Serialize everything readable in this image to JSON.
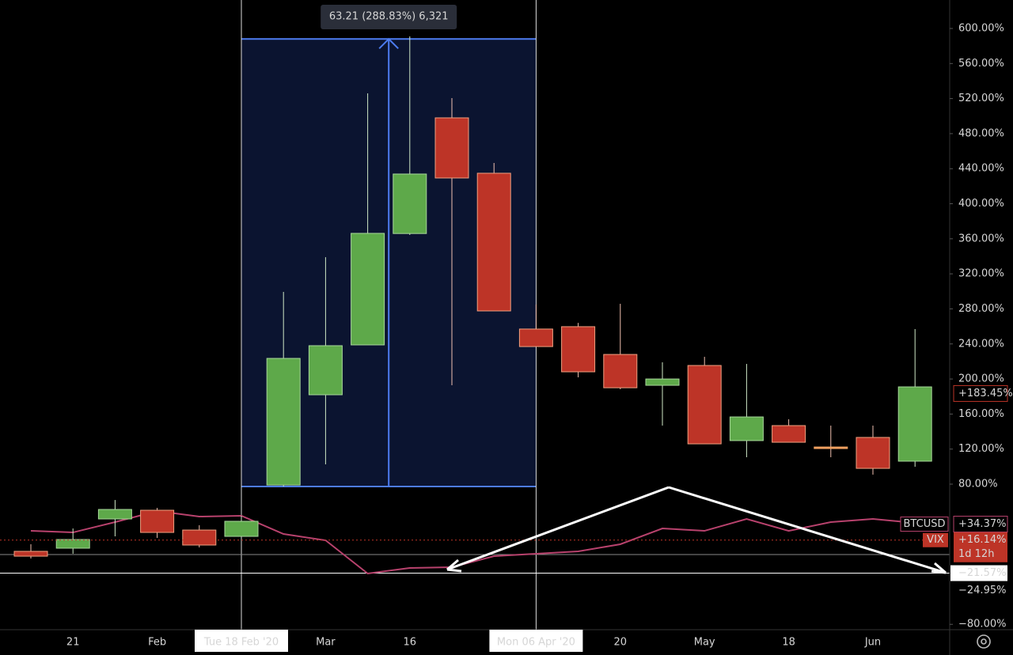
{
  "chart_data": {
    "type": "candlestick",
    "categories": [
      null,
      "21",
      null,
      "Feb",
      null,
      "Tue 18 Feb '20",
      null,
      "Mar",
      null,
      "16",
      null,
      null,
      "Mon 06 Apr '20",
      null,
      "20",
      null,
      "May",
      null,
      "18",
      null,
      "Jun",
      null
    ],
    "series": [
      {
        "name": "VIX",
        "type": "candlestick",
        "up_color": "#5ea94a",
        "down_color": "#bd3427",
        "flat_color": "#f0a060",
        "open": [
          3.3,
          6.9,
          40.3,
          50.2,
          27.6,
          20.4,
          79,
          182,
          238.9,
          366,
          498,
          434.8,
          257,
          259.7,
          228,
          192.8,
          215.4,
          129.7,
          146.8,
          122.4,
          133.3,
          106.2
        ],
        "high": [
          11.4,
          29.4,
          61.9,
          52.9,
          33.1,
          43.9,
          299.4,
          339,
          526,
          591,
          520.6,
          446.5,
          285,
          264,
          285.8,
          219,
          225.3,
          217.2,
          154,
          146.8,
          146.8,
          257
        ],
        "low": [
          -4.9,
          0.6,
          20.4,
          18.6,
          7.8,
          20.4,
          77.3,
          102.6,
          238.9,
          364.4,
          192.8,
          277.7,
          237,
          201.9,
          188.3,
          146.8,
          126,
          110.7,
          127.8,
          110.7,
          90.8,
          99.9
        ],
        "close": [
          -2.2,
          16.8,
          51.1,
          24.9,
          10.5,
          37.6,
          223.5,
          238,
          366.2,
          433.9,
          429.4,
          277.7,
          237,
          208.2,
          190,
          200,
          126,
          156.7,
          127.8,
          122.4,
          98,
          191
        ],
        "price_tag": {
          "value": 16.14,
          "label": "+16.14%"
        },
        "countdown": "1d 12h"
      },
      {
        "name": "BTCUSD",
        "type": "line",
        "color": "#b8426d",
        "values": [
          26.7,
          24.9,
          36.7,
          49.3,
          43,
          43.9,
          23.1,
          15.9,
          -22,
          -15.7,
          -14.8,
          -2.2,
          0.6,
          3.3,
          11.4,
          29.4,
          26.7,
          40.3,
          26.7,
          36.7,
          40.3,
          35.8
        ],
        "price_tag": {
          "value": 34.37,
          "label": "+34.37%"
        }
      }
    ],
    "ylim": [
      -86.1,
      632.5
    ],
    "yticks": [
      {
        "value": -80,
        "label": "−80.00%"
      },
      {
        "value": 80,
        "label": "80.00%"
      },
      {
        "value": 120,
        "label": "120.00%"
      },
      {
        "value": 160,
        "label": "160.00%"
      },
      {
        "value": 200,
        "label": "200.00%"
      },
      {
        "value": 240,
        "label": "240.00%"
      },
      {
        "value": 280,
        "label": "280.00%"
      },
      {
        "value": 320,
        "label": "320.00%"
      },
      {
        "value": 360,
        "label": "360.00%"
      },
      {
        "value": 400,
        "label": "400.00%"
      },
      {
        "value": 440,
        "label": "440.00%"
      },
      {
        "value": 480,
        "label": "480.00%"
      },
      {
        "value": 520,
        "label": "520.00%"
      },
      {
        "value": 560,
        "label": "560.00%"
      },
      {
        "value": 600,
        "label": "600.00%"
      }
    ],
    "axis_tags": [
      {
        "value": 183.45,
        "label": "+183.45%"
      },
      {
        "value": -21.57,
        "label": "−21.57%"
      },
      {
        "value": -24.95,
        "label": "−24.95%"
      }
    ],
    "measure": {
      "label": "63.21 (288.83%) 6,321",
      "range": [
        77.3,
        588
      ]
    }
  }
}
